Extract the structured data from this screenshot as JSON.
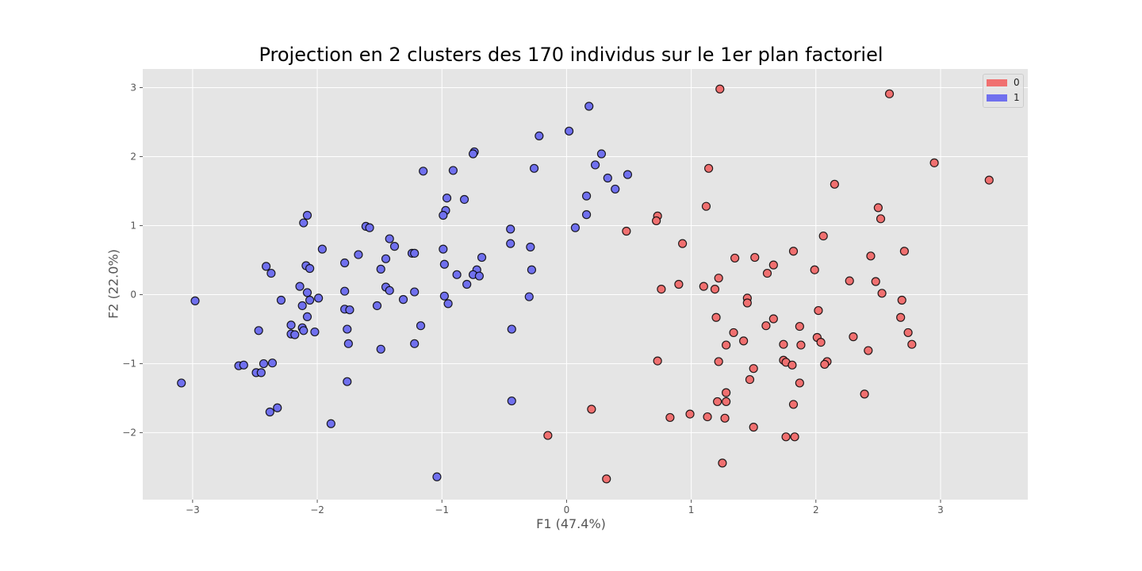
{
  "chart_data": {
    "type": "scatter",
    "title": "Projection en 2 clusters des 170 individus sur le 1er plan factoriel",
    "xlabel": "F1 (47.4%)",
    "ylabel": "F2 (22.0%)",
    "xlim": [
      -3.4,
      3.7
    ],
    "ylim": [
      -2.97,
      3.27
    ],
    "xticks": [
      -3,
      -2,
      -1,
      0,
      1,
      2,
      3
    ],
    "yticks": [
      -2,
      -1,
      0,
      1,
      2,
      3
    ],
    "xtick_labels": [
      "−3",
      "−2",
      "−1",
      "0",
      "1",
      "2",
      "3"
    ],
    "ytick_labels": [
      "−2",
      "−1",
      "0",
      "1",
      "2",
      "3"
    ],
    "grid": true,
    "legend_position": "top-right",
    "colors": {
      "0": "#f07070",
      "1": "#7070ee",
      "background": "#e5e5e5",
      "grid": "#ffffff",
      "edge": "#000000"
    },
    "series": [
      {
        "name": "0",
        "points": [
          [
            1.23,
            2.98
          ],
          [
            2.59,
            2.91
          ],
          [
            2.95,
            1.91
          ],
          [
            3.39,
            1.66
          ],
          [
            1.14,
            1.83
          ],
          [
            2.15,
            1.6
          ],
          [
            1.12,
            1.28
          ],
          [
            2.5,
            1.26
          ],
          [
            2.52,
            1.1
          ],
          [
            0.73,
            1.14
          ],
          [
            0.72,
            1.07
          ],
          [
            0.48,
            0.92
          ],
          [
            2.06,
            0.85
          ],
          [
            0.93,
            0.74
          ],
          [
            2.71,
            0.63
          ],
          [
            1.82,
            0.63
          ],
          [
            2.44,
            0.56
          ],
          [
            1.35,
            0.53
          ],
          [
            1.51,
            0.54
          ],
          [
            1.66,
            0.43
          ],
          [
            1.99,
            0.36
          ],
          [
            1.61,
            0.31
          ],
          [
            1.22,
            0.24
          ],
          [
            2.27,
            0.2
          ],
          [
            2.48,
            0.19
          ],
          [
            0.9,
            0.15
          ],
          [
            1.1,
            0.12
          ],
          [
            1.19,
            0.08
          ],
          [
            0.76,
            0.08
          ],
          [
            2.53,
            0.02
          ],
          [
            1.45,
            -0.05
          ],
          [
            1.45,
            -0.12
          ],
          [
            2.69,
            -0.08
          ],
          [
            2.02,
            -0.23
          ],
          [
            1.2,
            -0.33
          ],
          [
            2.68,
            -0.33
          ],
          [
            1.66,
            -0.35
          ],
          [
            1.6,
            -0.45
          ],
          [
            1.87,
            -0.46
          ],
          [
            1.34,
            -0.55
          ],
          [
            2.74,
            -0.55
          ],
          [
            2.3,
            -0.61
          ],
          [
            2.01,
            -0.62
          ],
          [
            1.42,
            -0.67
          ],
          [
            2.04,
            -0.69
          ],
          [
            1.28,
            -0.73
          ],
          [
            1.74,
            -0.72
          ],
          [
            1.88,
            -0.73
          ],
          [
            2.77,
            -0.72
          ],
          [
            2.42,
            -0.81
          ],
          [
            0.73,
            -0.96
          ],
          [
            1.22,
            -0.97
          ],
          [
            1.74,
            -0.95
          ],
          [
            1.76,
            -0.98
          ],
          [
            1.81,
            -1.02
          ],
          [
            2.09,
            -0.97
          ],
          [
            2.07,
            -1.01
          ],
          [
            1.5,
            -1.07
          ],
          [
            1.47,
            -1.23
          ],
          [
            1.87,
            -1.28
          ],
          [
            1.28,
            -1.42
          ],
          [
            2.39,
            -1.44
          ],
          [
            1.21,
            -1.55
          ],
          [
            1.28,
            -1.55
          ],
          [
            1.82,
            -1.59
          ],
          [
            0.2,
            -1.66
          ],
          [
            0.99,
            -1.73
          ],
          [
            0.83,
            -1.78
          ],
          [
            1.13,
            -1.77
          ],
          [
            1.27,
            -1.79
          ],
          [
            1.5,
            -1.92
          ],
          [
            -0.15,
            -2.04
          ],
          [
            1.76,
            -2.06
          ],
          [
            1.83,
            -2.06
          ],
          [
            1.25,
            -2.44
          ],
          [
            0.32,
            -2.67
          ]
        ]
      },
      {
        "name": "1",
        "points": [
          [
            0.18,
            2.73
          ],
          [
            0.02,
            2.37
          ],
          [
            -0.22,
            2.3
          ],
          [
            -0.74,
            2.07
          ],
          [
            -0.75,
            2.04
          ],
          [
            0.28,
            2.04
          ],
          [
            0.23,
            1.88
          ],
          [
            -0.26,
            1.83
          ],
          [
            -1.15,
            1.79
          ],
          [
            -0.91,
            1.8
          ],
          [
            0.49,
            1.74
          ],
          [
            0.33,
            1.69
          ],
          [
            0.39,
            1.53
          ],
          [
            0.16,
            1.43
          ],
          [
            -0.96,
            1.4
          ],
          [
            -0.82,
            1.38
          ],
          [
            -0.97,
            1.22
          ],
          [
            -0.99,
            1.15
          ],
          [
            0.16,
            1.16
          ],
          [
            -2.08,
            1.15
          ],
          [
            -2.11,
            1.04
          ],
          [
            -1.61,
            0.99
          ],
          [
            -1.58,
            0.97
          ],
          [
            0.07,
            0.97
          ],
          [
            -0.45,
            0.95
          ],
          [
            -1.42,
            0.81
          ],
          [
            -0.45,
            0.74
          ],
          [
            -1.38,
            0.7
          ],
          [
            -0.29,
            0.69
          ],
          [
            -1.96,
            0.66
          ],
          [
            -0.99,
            0.66
          ],
          [
            -1.24,
            0.6
          ],
          [
            -1.22,
            0.6
          ],
          [
            -1.67,
            0.58
          ],
          [
            -0.68,
            0.54
          ],
          [
            -1.45,
            0.52
          ],
          [
            -1.78,
            0.46
          ],
          [
            -0.98,
            0.44
          ],
          [
            -2.41,
            0.41
          ],
          [
            -2.09,
            0.42
          ],
          [
            -2.06,
            0.38
          ],
          [
            -1.49,
            0.37
          ],
          [
            -0.72,
            0.36
          ],
          [
            -0.28,
            0.36
          ],
          [
            -2.37,
            0.31
          ],
          [
            -0.88,
            0.29
          ],
          [
            -0.75,
            0.29
          ],
          [
            -0.7,
            0.27
          ],
          [
            -0.8,
            0.15
          ],
          [
            -2.14,
            0.12
          ],
          [
            -1.45,
            0.11
          ],
          [
            -1.42,
            0.06
          ],
          [
            -1.78,
            0.05
          ],
          [
            -1.22,
            0.04
          ],
          [
            -2.08,
            0.03
          ],
          [
            -0.98,
            -0.02
          ],
          [
            -0.3,
            -0.03
          ],
          [
            -1.99,
            -0.05
          ],
          [
            -2.29,
            -0.08
          ],
          [
            -2.06,
            -0.08
          ],
          [
            -1.31,
            -0.07
          ],
          [
            -2.98,
            -0.09
          ],
          [
            -0.95,
            -0.13
          ],
          [
            -2.12,
            -0.16
          ],
          [
            -1.52,
            -0.16
          ],
          [
            -1.78,
            -0.21
          ],
          [
            -1.74,
            -0.22
          ],
          [
            -2.08,
            -0.32
          ],
          [
            -1.17,
            -0.45
          ],
          [
            -2.21,
            -0.44
          ],
          [
            -2.12,
            -0.48
          ],
          [
            -2.11,
            -0.52
          ],
          [
            -2.47,
            -0.52
          ],
          [
            -1.76,
            -0.5
          ],
          [
            -0.44,
            -0.5
          ],
          [
            -2.02,
            -0.54
          ],
          [
            -2.21,
            -0.57
          ],
          [
            -2.18,
            -0.58
          ],
          [
            -1.22,
            -0.71
          ],
          [
            -1.75,
            -0.71
          ],
          [
            -1.49,
            -0.79
          ],
          [
            -2.36,
            -0.99
          ],
          [
            -2.43,
            -1.0
          ],
          [
            -2.63,
            -1.03
          ],
          [
            -2.59,
            -1.02
          ],
          [
            -2.49,
            -1.13
          ],
          [
            -2.45,
            -1.13
          ],
          [
            -1.76,
            -1.26
          ],
          [
            -3.09,
            -1.28
          ],
          [
            -0.44,
            -1.54
          ],
          [
            -2.32,
            -1.64
          ],
          [
            -2.38,
            -1.7
          ],
          [
            -1.89,
            -1.87
          ],
          [
            -1.04,
            -2.64
          ]
        ]
      }
    ]
  }
}
